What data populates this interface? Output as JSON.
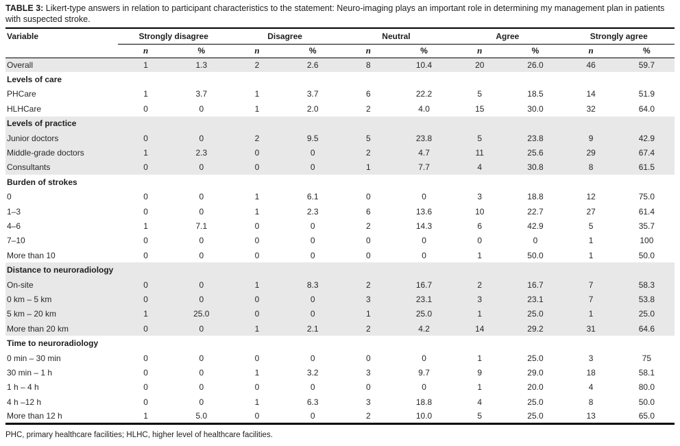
{
  "caption": {
    "label": "TABLE 3:",
    "text": " Likert-type answers in relation to participant characteristics to the statement: Neuro-imaging plays an important role in determining my management plan in patients with suspected stroke."
  },
  "header": {
    "variable": "Variable",
    "groups": [
      "Strongly disagree",
      "Disagree",
      "Neutral",
      "Agree",
      "Strongly agree"
    ],
    "sub_n": "n",
    "sub_pct": "%"
  },
  "rows": [
    {
      "label": "Overall",
      "type": "data",
      "shaded": true,
      "values": [
        "1",
        "1.3",
        "2",
        "2.6",
        "8",
        "10.4",
        "20",
        "26.0",
        "46",
        "59.7"
      ]
    },
    {
      "label": "Levels of care",
      "type": "section",
      "shaded": false,
      "values": [
        "",
        "",
        "",
        "",
        "",
        "",
        "",
        "",
        "",
        ""
      ]
    },
    {
      "label": "PHCare",
      "type": "data",
      "shaded": false,
      "values": [
        "1",
        "3.7",
        "1",
        "3.7",
        "6",
        "22.2",
        "5",
        "18.5",
        "14",
        "51.9"
      ]
    },
    {
      "label": "HLHCare",
      "type": "data",
      "shaded": false,
      "values": [
        "0",
        "0",
        "1",
        "2.0",
        "2",
        "4.0",
        "15",
        "30.0",
        "32",
        "64.0"
      ]
    },
    {
      "label": "Levels of practice",
      "type": "section",
      "shaded": true,
      "values": [
        "",
        "",
        "",
        "",
        "",
        "",
        "",
        "",
        "",
        ""
      ]
    },
    {
      "label": "Junior doctors",
      "type": "data",
      "shaded": true,
      "values": [
        "0",
        "0",
        "2",
        "9.5",
        "5",
        "23.8",
        "5",
        "23.8",
        "9",
        "42.9"
      ]
    },
    {
      "label": "Middle-grade doctors",
      "type": "data",
      "shaded": true,
      "values": [
        "1",
        "2.3",
        "0",
        "0",
        "2",
        "4.7",
        "11",
        "25.6",
        "29",
        "67.4"
      ]
    },
    {
      "label": "Consultants",
      "type": "data",
      "shaded": true,
      "values": [
        "0",
        "0",
        "0",
        "0",
        "1",
        "7.7",
        "4",
        "30.8",
        "8",
        "61.5"
      ]
    },
    {
      "label": "Burden of strokes",
      "type": "section",
      "shaded": false,
      "values": [
        "",
        "",
        "",
        "",
        "",
        "",
        "",
        "",
        "",
        ""
      ]
    },
    {
      "label": "0",
      "type": "data",
      "shaded": false,
      "values": [
        "0",
        "0",
        "1",
        "6.1",
        "0",
        "0",
        "3",
        "18.8",
        "12",
        "75.0"
      ]
    },
    {
      "label": "1–3",
      "type": "data",
      "shaded": false,
      "values": [
        "0",
        "0",
        "1",
        "2.3",
        "6",
        "13.6",
        "10",
        "22.7",
        "27",
        "61.4"
      ]
    },
    {
      "label": "4–6",
      "type": "data",
      "shaded": false,
      "values": [
        "1",
        "7.1",
        "0",
        "0",
        "2",
        "14.3",
        "6",
        "42.9",
        "5",
        "35.7"
      ]
    },
    {
      "label": "7–10",
      "type": "data",
      "shaded": false,
      "values": [
        "0",
        "0",
        "0",
        "0",
        "0",
        "0",
        "0",
        "0",
        "1",
        "100"
      ]
    },
    {
      "label": "More than 10",
      "type": "data",
      "shaded": false,
      "values": [
        "0",
        "0",
        "0",
        "0",
        "0",
        "0",
        "1",
        "50.0",
        "1",
        "50.0"
      ]
    },
    {
      "label": "Distance to neuroradiology",
      "type": "section",
      "shaded": true,
      "values": [
        "",
        "",
        "",
        "",
        "",
        "",
        "",
        "",
        "",
        ""
      ]
    },
    {
      "label": "On-site",
      "type": "data",
      "shaded": true,
      "values": [
        "0",
        "0",
        "1",
        "8.3",
        "2",
        "16.7",
        "2",
        "16.7",
        "7",
        "58.3"
      ]
    },
    {
      "label": "0 km – 5 km",
      "type": "data",
      "shaded": true,
      "values": [
        "0",
        "0",
        "0",
        "0",
        "3",
        "23.1",
        "3",
        "23.1",
        "7",
        "53.8"
      ]
    },
    {
      "label": "5 km – 20 km",
      "type": "data",
      "shaded": true,
      "values": [
        "1",
        "25.0",
        "0",
        "0",
        "1",
        "25.0",
        "1",
        "25.0",
        "1",
        "25.0"
      ]
    },
    {
      "label": "More than 20 km",
      "type": "data",
      "shaded": true,
      "values": [
        "0",
        "0",
        "1",
        "2.1",
        "2",
        "4.2",
        "14",
        "29.2",
        "31",
        "64.6"
      ]
    },
    {
      "label": "Time to neuroradiology",
      "type": "section",
      "shaded": false,
      "values": [
        "",
        "",
        "",
        "",
        "",
        "",
        "",
        "",
        "",
        ""
      ]
    },
    {
      "label": "0 min – 30 min",
      "type": "data",
      "shaded": false,
      "values": [
        "0",
        "0",
        "0",
        "0",
        "0",
        "0",
        "1",
        "25.0",
        "3",
        "75"
      ]
    },
    {
      "label": "30 min – 1 h",
      "type": "data",
      "shaded": false,
      "values": [
        "0",
        "0",
        "1",
        "3.2",
        "3",
        "9.7",
        "9",
        "29.0",
        "18",
        "58.1"
      ]
    },
    {
      "label": "1 h – 4 h",
      "type": "data",
      "shaded": false,
      "values": [
        "0",
        "0",
        "0",
        "0",
        "0",
        "0",
        "1",
        "20.0",
        "4",
        "80.0"
      ]
    },
    {
      "label": "4 h –12 h",
      "type": "data",
      "shaded": false,
      "values": [
        "0",
        "0",
        "1",
        "6.3",
        "3",
        "18.8",
        "4",
        "25.0",
        "8",
        "50.0"
      ]
    },
    {
      "label": "More than 12 h",
      "type": "data",
      "shaded": false,
      "values": [
        "1",
        "5.0",
        "0",
        "0",
        "2",
        "10.0",
        "5",
        "25.0",
        "13",
        "65.0"
      ]
    }
  ],
  "footnote": "PHC, primary healthcare facilities; HLHC, higher level of healthcare facilities.",
  "colors": {
    "row_shade": "#e8e8e8",
    "rule": "#000000",
    "text": "#222222"
  }
}
